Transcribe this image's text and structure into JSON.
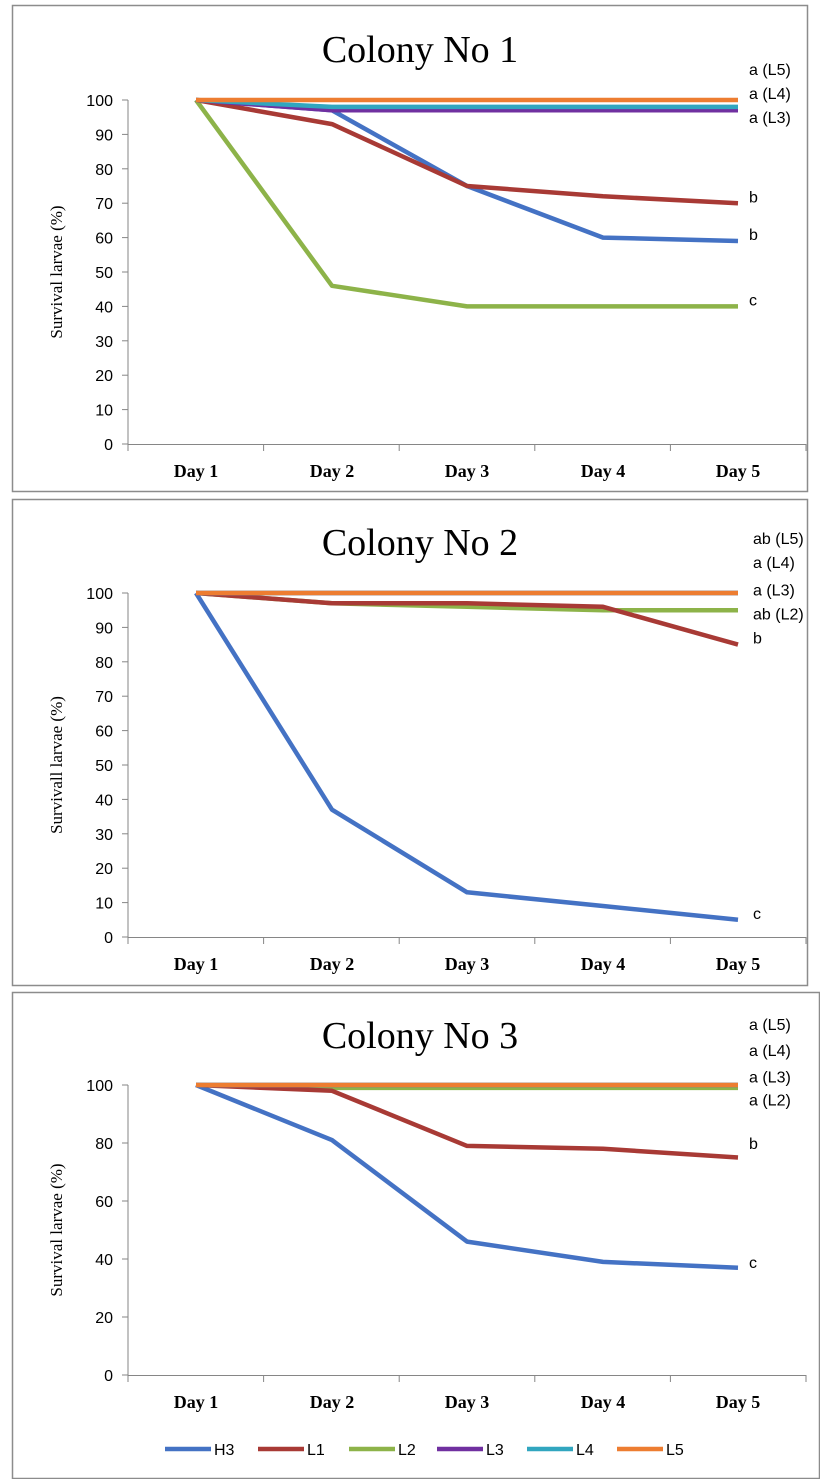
{
  "colors": {
    "H3": "#4472C4",
    "L1": "#A83A35",
    "L2": "#8DB349",
    "L3": "#7030A0",
    "L4": "#31A6BF",
    "L5": "#ED7D31"
  },
  "legend": [
    "H3",
    "L1",
    "L2",
    "L3",
    "L4",
    "L5"
  ],
  "chart_data": [
    {
      "type": "line",
      "title": "Colony No 1",
      "ylabel": "Survival larvae (%)",
      "xlabel": "",
      "categories": [
        "Day 1",
        "Day 2",
        "Day 3",
        "Day 4",
        "Day 5"
      ],
      "ylim": [
        0,
        100
      ],
      "yticks": [
        0,
        10,
        20,
        30,
        40,
        50,
        60,
        70,
        80,
        90,
        100
      ],
      "legend_position": "bottom",
      "series": [
        {
          "name": "H3",
          "values": [
            100,
            97,
            75,
            60,
            59
          ]
        },
        {
          "name": "L1",
          "values": [
            100,
            93,
            75,
            72,
            70
          ]
        },
        {
          "name": "L2",
          "values": [
            100,
            46,
            40,
            40,
            40
          ]
        },
        {
          "name": "L3",
          "values": [
            100,
            97,
            97,
            97,
            97
          ]
        },
        {
          "name": "L4",
          "values": [
            100,
            98,
            98,
            98,
            98
          ]
        },
        {
          "name": "L5",
          "values": [
            100,
            100,
            100,
            100,
            100
          ]
        }
      ],
      "annotations": [
        {
          "text": "a (L5)",
          "y": 109
        },
        {
          "text": "a (L4)",
          "y": 102
        },
        {
          "text": "a (L3)",
          "y": 95
        },
        {
          "text": "b",
          "y": 72
        },
        {
          "text": "b",
          "y": 61
        },
        {
          "text": "c",
          "y": 42
        }
      ]
    },
    {
      "type": "line",
      "title": "Colony No 2",
      "ylabel": "Survivall larvae (%)",
      "xlabel": "",
      "categories": [
        "Day 1",
        "Day 2",
        "Day 3",
        "Day 4",
        "Day 5"
      ],
      "ylim": [
        0,
        100
      ],
      "yticks": [
        0,
        10,
        20,
        30,
        40,
        50,
        60,
        70,
        80,
        90,
        100
      ],
      "legend_position": "bottom",
      "series": [
        {
          "name": "H3",
          "values": [
            100,
            37,
            13,
            9,
            5
          ]
        },
        {
          "name": "L1",
          "values": [
            100,
            97,
            97,
            96,
            85
          ]
        },
        {
          "name": "L2",
          "values": [
            100,
            97,
            96,
            95,
            95
          ]
        },
        {
          "name": "L3",
          "values": [
            100,
            100,
            100,
            100,
            100
          ]
        },
        {
          "name": "L4",
          "values": [
            100,
            100,
            100,
            100,
            100
          ]
        },
        {
          "name": "L5",
          "values": [
            100,
            100,
            100,
            100,
            100
          ]
        }
      ],
      "annotations": [
        {
          "text": "ab (L5)",
          "y": 116
        },
        {
          "text": "a (L4)",
          "y": 109
        },
        {
          "text": "a (L3)",
          "y": 101
        },
        {
          "text": "ab (L2)",
          "y": 94
        },
        {
          "text": "b",
          "y": 87
        },
        {
          "text": "c",
          "y": 7
        }
      ]
    },
    {
      "type": "line",
      "title": "Colony No 3",
      "ylabel": "Survival larvae (%)",
      "xlabel": "",
      "categories": [
        "Day 1",
        "Day 2",
        "Day 3",
        "Day 4",
        "Day 5"
      ],
      "ylim": [
        0,
        100
      ],
      "yticks": [
        0,
        20,
        40,
        60,
        80,
        100
      ],
      "legend_position": "bottom",
      "series": [
        {
          "name": "H3",
          "values": [
            100,
            81,
            46,
            39,
            37
          ]
        },
        {
          "name": "L1",
          "values": [
            100,
            98,
            79,
            78,
            75
          ]
        },
        {
          "name": "L2",
          "values": [
            100,
            99,
            99,
            99,
            99
          ]
        },
        {
          "name": "L3",
          "values": [
            100,
            100,
            100,
            100,
            100
          ]
        },
        {
          "name": "L4",
          "values": [
            100,
            100,
            100,
            100,
            100
          ]
        },
        {
          "name": "L5",
          "values": [
            100,
            100,
            100,
            100,
            100
          ]
        }
      ],
      "annotations": [
        {
          "text": "a (L5)",
          "y": 121
        },
        {
          "text": "a (L4)",
          "y": 112
        },
        {
          "text": "a (L3)",
          "y": 103
        },
        {
          "text": "a (L2)",
          "y": 95
        },
        {
          "text": "b",
          "y": 80
        },
        {
          "text": "c",
          "y": 39
        }
      ]
    }
  ]
}
